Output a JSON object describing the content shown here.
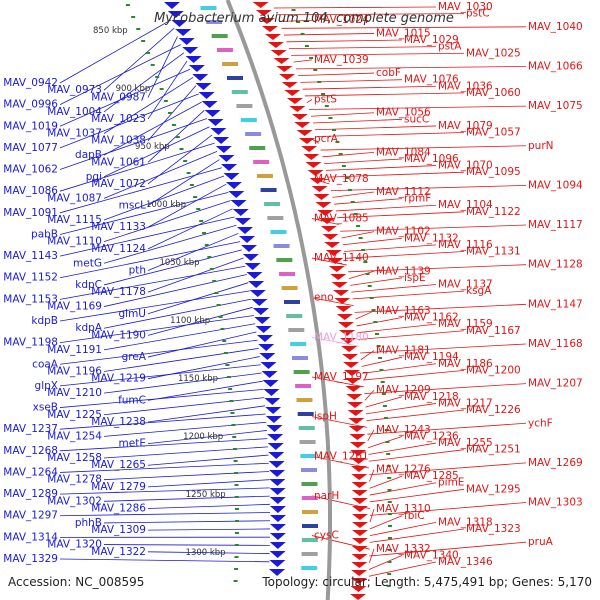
{
  "title": "Mycobacterium avium 104, complete genome",
  "accession": "Accession: NC_008595",
  "topology": "Topology: circular; Length: 5,475,491 bp; Genes: 5,170",
  "colors": {
    "forward": "#e41414",
    "reverse": "#1a1ad8",
    "highlight": "#f0a0d8",
    "backbone": "#999999"
  },
  "ticks": [
    "850 kbp",
    "900 kbp",
    "950 kbp",
    "1000 kbp",
    "1050 kbp",
    "1100 kbp",
    "1150 kbp",
    "1200 kbp",
    "1250 kbp",
    "1300 kbp"
  ],
  "left_labels": [
    "MAV_0942",
    "MAV_0973",
    "MAV_0987",
    "MAV_0996",
    "MAV_1004",
    "MAV_1023",
    "MAV_1019",
    "MAV_1037",
    "MAV_1038",
    "MAV_1077",
    "dapB",
    "MAV_1061",
    "MAV_1062",
    "pgi",
    "MAV_1072",
    "MAV_1086",
    "MAV_1087",
    "mscL",
    "MAV_1091",
    "MAV_1115",
    "MAV_1133",
    "pabB",
    "MAV_1110",
    "MAV_1124",
    "MAV_1143",
    "metG",
    "pth",
    "MAV_1152",
    "kdpC",
    "MAV_1178",
    "MAV_1153",
    "MAV_1169",
    "glmU",
    "kdpB",
    "kdpA",
    "MAV_1190",
    "MAV_1198",
    "MAV_1191",
    "greA",
    "coaA",
    "MAV_1196",
    "MAV_1219",
    "glpX",
    "MAV_1210",
    "fumC",
    "xseB",
    "MAV_1225",
    "MAV_1238",
    "MAV_1237",
    "MAV_1254",
    "metE",
    "MAV_1268",
    "MAV_1258",
    "MAV_1265",
    "MAV_1264",
    "MAV_1278",
    "MAV_1279",
    "MAV_1289",
    "MAV_1302",
    "MAV_1286",
    "MAV_1297",
    "phhB",
    "MAV_1309",
    "MAV_1314",
    "MAV_1320",
    "MAV_1322",
    "MAV_1329"
  ],
  "right_labels": [
    "MAV_1030",
    "pstC",
    "MAV_1024",
    "MAV_1040",
    "MAV_1015",
    "MAV_1029",
    "pstA",
    "MAV_1025",
    "MAV_1039",
    "MAV_1066",
    "cobF",
    "MAV_1076",
    "MAV_1036",
    "MAV_1060",
    "pstS",
    "MAV_1075",
    "MAV_1056",
    "sucC",
    "MAV_1079",
    "MAV_1057",
    "pcrA",
    "purN",
    "MAV_1084",
    "MAV_1096",
    "MAV_1070",
    "MAV_1095",
    "MAV_1078",
    "MAV_1094",
    "MAV_1112",
    "rpmF",
    "MAV_1104",
    "MAV_1122",
    "MAV_1085",
    "MAV_1117",
    "MAV_1102",
    "MAV_1132",
    "MAV_1116",
    "MAV_1131",
    "MAV_1140",
    "MAV_1128",
    "MAV_1139",
    "ispE",
    "MAV_1137",
    "ksgA",
    "eno",
    "MAV_1147",
    "MAV_1163",
    "MAV_1162",
    "MAV_1159",
    "MAV_1167",
    "MAV_1180",
    "MAV_1168",
    "MAV_1181",
    "MAV_1194",
    "MAV_1186",
    "MAV_1200",
    "MAV_1197",
    "MAV_1207",
    "MAV_1209",
    "MAV_1218",
    "MAV_1217",
    "MAV_1226",
    "ispH",
    "ychF",
    "MAV_1243",
    "MAV_1236",
    "MAV_1255",
    "MAV_1251",
    "MAV_1261",
    "MAV_1269",
    "MAV_1276",
    "MAV_1285",
    "pimE",
    "MAV_1295",
    "narH",
    "MAV_1303",
    "MAV_1310",
    "fbiC",
    "MAV_1318",
    "MAV_1323",
    "cysC",
    "pruA",
    "MAV_1332",
    "MAV_1340",
    "MAV_1346"
  ]
}
